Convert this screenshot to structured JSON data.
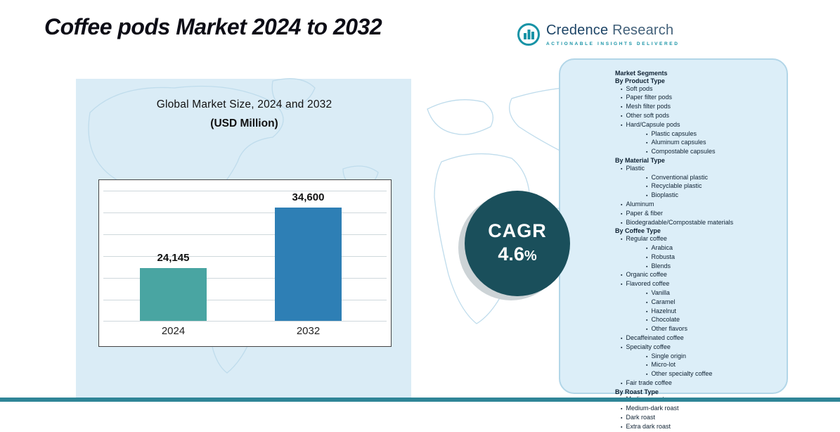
{
  "title": "Coffee pods Market 2024 to 2032",
  "logo": {
    "brand_primary": "Credence",
    "brand_secondary": "Research",
    "tagline": "Actionable Insights Delivered"
  },
  "chart_data": {
    "type": "bar",
    "title": "Global Market Size, 2024 and 2032",
    "subtitle": "(USD Million)",
    "categories": [
      "2024",
      "2032"
    ],
    "values": [
      24145,
      34600
    ],
    "value_labels": [
      "24,145",
      "34,600"
    ],
    "bar_colors": [
      "#49a5a2",
      "#2e7fb5"
    ],
    "ylim": [
      15000,
      40000
    ],
    "grid": true,
    "legend": false
  },
  "cagr": {
    "label": "CAGR",
    "value": "4.6",
    "unit": "%"
  },
  "segments": {
    "title": "Market Segments",
    "items": [
      {
        "t": "By Product Type",
        "l": 0
      },
      {
        "t": "Soft pods",
        "l": 1
      },
      {
        "t": "Paper filter pods",
        "l": 1
      },
      {
        "t": "Mesh filter pods",
        "l": 1
      },
      {
        "t": "Other soft pods",
        "l": 1
      },
      {
        "t": "Hard/Capsule pods",
        "l": 1
      },
      {
        "t": "Plastic capsules",
        "l": 2
      },
      {
        "t": "Aluminum capsules",
        "l": 2
      },
      {
        "t": "Compostable capsules",
        "l": 2
      },
      {
        "t": "By Material Type",
        "l": 0
      },
      {
        "t": "Plastic",
        "l": 1
      },
      {
        "t": "Conventional plastic",
        "l": 2
      },
      {
        "t": "Recyclable plastic",
        "l": 2
      },
      {
        "t": "Bioplastic",
        "l": 2
      },
      {
        "t": "Aluminum",
        "l": 1
      },
      {
        "t": "Paper & fiber",
        "l": 1
      },
      {
        "t": "Biodegradable/Compostable materials",
        "l": 1
      },
      {
        "t": "By Coffee Type",
        "l": 0
      },
      {
        "t": "Regular coffee",
        "l": 1
      },
      {
        "t": "Arabica",
        "l": 2
      },
      {
        "t": "Robusta",
        "l": 2
      },
      {
        "t": "Blends",
        "l": 2
      },
      {
        "t": "Organic coffee",
        "l": 1
      },
      {
        "t": "Flavored coffee",
        "l": 1
      },
      {
        "t": "Vanilla",
        "l": 2
      },
      {
        "t": "Caramel",
        "l": 2
      },
      {
        "t": "Hazelnut",
        "l": 2
      },
      {
        "t": "Chocolate",
        "l": 2
      },
      {
        "t": "Other flavors",
        "l": 2
      },
      {
        "t": "Decaffeinated coffee",
        "l": 1
      },
      {
        "t": "Specialty coffee",
        "l": 1
      },
      {
        "t": "Single origin",
        "l": 2
      },
      {
        "t": "Micro-lot",
        "l": 2
      },
      {
        "t": "Other specialty coffee",
        "l": 2
      },
      {
        "t": "Fair trade coffee",
        "l": 1
      },
      {
        "t": "By Roast Type",
        "l": 0
      },
      {
        "t": "Medium roast",
        "l": 1
      },
      {
        "t": "Medium-dark roast",
        "l": 1
      },
      {
        "t": "Dark roast",
        "l": 1
      },
      {
        "t": "Extra dark roast",
        "l": 1
      }
    ]
  },
  "colors": {
    "panel_bg": "#daecf6",
    "segments_bg": "#dceef8",
    "segments_border": "#b2d6e8",
    "map_line": "#bfdcec",
    "cagr_circle": "#1a4f5b",
    "accent_teal": "#2f8597",
    "bar_2024": "#49a5a2",
    "bar_2032": "#2e7fb5",
    "text_dark": "#0f2233"
  }
}
